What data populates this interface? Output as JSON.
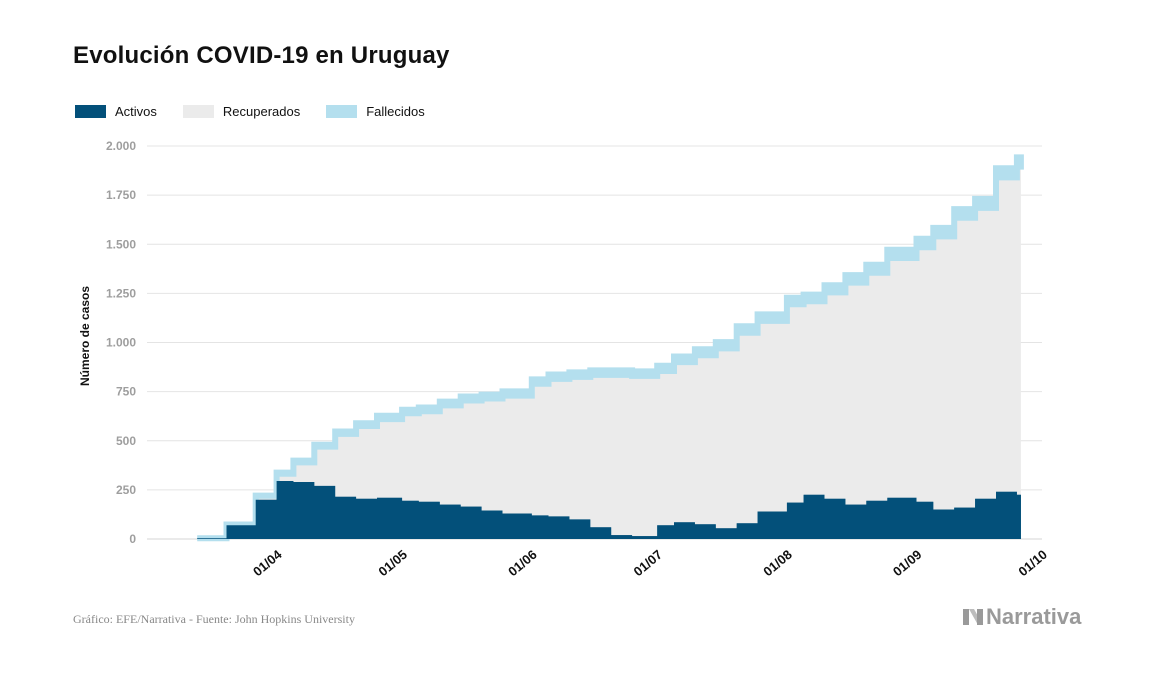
{
  "title": "Evolución COVID-19 en Uruguay",
  "legend": [
    {
      "label": "Activos",
      "color": "#03507a"
    },
    {
      "label": "Recuperados",
      "color": "#ebebeb"
    },
    {
      "label": "Fallecidos",
      "color": "#b4dfee"
    }
  ],
  "source": "Gráfico: EFE/Narrativa - Fuente: John Hopkins University",
  "brand": "Narrativa",
  "chart_data": {
    "type": "area",
    "stacked": true,
    "title": "Evolución COVID-19 en Uruguay",
    "ylabel": "Número de casos",
    "xlabel": "",
    "ylim": [
      0,
      2000
    ],
    "yticks": [
      0,
      250,
      500,
      750,
      1000,
      1250,
      1500,
      1750,
      2000
    ],
    "ytick_labels": [
      "0",
      "250",
      "500",
      "750",
      "1.000",
      "1.250",
      "1.500",
      "1.750",
      "2.000"
    ],
    "xticks": [
      "01/04",
      "01/05",
      "01/06",
      "01/07",
      "01/08",
      "01/09",
      "01/10"
    ],
    "grid": true,
    "x": [
      "2020-03-13",
      "2020-03-20",
      "2020-03-27",
      "2020-04-01",
      "2020-04-05",
      "2020-04-10",
      "2020-04-15",
      "2020-04-20",
      "2020-04-25",
      "2020-05-01",
      "2020-05-05",
      "2020-05-10",
      "2020-05-15",
      "2020-05-20",
      "2020-05-25",
      "2020-06-01",
      "2020-06-05",
      "2020-06-10",
      "2020-06-15",
      "2020-06-20",
      "2020-06-25",
      "2020-07-01",
      "2020-07-05",
      "2020-07-10",
      "2020-07-15",
      "2020-07-20",
      "2020-07-25",
      "2020-08-01",
      "2020-08-05",
      "2020-08-10",
      "2020-08-15",
      "2020-08-20",
      "2020-08-25",
      "2020-09-01",
      "2020-09-05",
      "2020-09-10",
      "2020-09-15",
      "2020-09-20",
      "2020-09-25"
    ],
    "series": [
      {
        "name": "Activos",
        "color": "#03507a",
        "values": [
          4,
          70,
          200,
          295,
          290,
          270,
          215,
          205,
          210,
          195,
          190,
          175,
          165,
          145,
          130,
          120,
          115,
          100,
          60,
          20,
          15,
          70,
          85,
          75,
          55,
          80,
          140,
          185,
          225,
          205,
          175,
          195,
          210,
          190,
          150,
          160,
          205,
          240,
          225
        ]
      },
      {
        "name": "Recuperados",
        "color": "#ebebeb",
        "values": [
          0,
          4,
          20,
          37,
          100,
          200,
          320,
          370,
          400,
          445,
          460,
          505,
          540,
          570,
          600,
          670,
          700,
          725,
          775,
          815,
          815,
          785,
          815,
          860,
          915,
          970,
          970,
          1010,
          985,
          1050,
          1130,
          1160,
          1220,
          1295,
          1390,
          1475,
          1480,
          1600,
          1670
        ]
      },
      {
        "name": "Fallecidos",
        "color": "#b4dfee",
        "values": [
          0,
          0,
          1,
          6,
          9,
          10,
          12,
          14,
          17,
          18,
          19,
          19,
          20,
          20,
          21,
          22,
          22,
          23,
          23,
          23,
          23,
          27,
          29,
          31,
          32,
          33,
          33,
          33,
          34,
          36,
          38,
          41,
          42,
          43,
          43,
          44,
          46,
          47,
          47
        ]
      }
    ]
  }
}
